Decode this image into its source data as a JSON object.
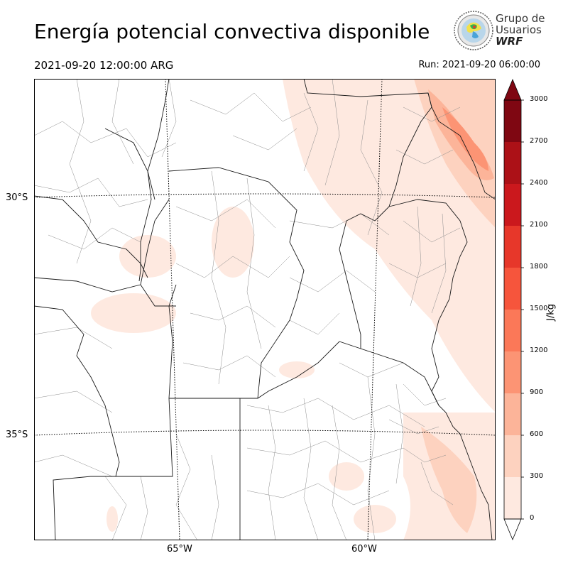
{
  "header": {
    "title": "Energía potencial convectiva disponible",
    "valid_time": "2021-09-20 12:00:00 ARG",
    "run_time": "Run: 2021-09-20 06:00:00"
  },
  "logo": {
    "line1": "Grupo de",
    "line2": "Usuarios",
    "line3": "WRF"
  },
  "map": {
    "lat_labels": [
      "30°S",
      "35°S"
    ],
    "lon_labels": [
      "65°W",
      "60°W"
    ]
  },
  "colorbar": {
    "label": "J/kg",
    "ticks": [
      "0",
      "300",
      "600",
      "900",
      "1200",
      "1500",
      "1800",
      "2100",
      "2400",
      "2700",
      "3000"
    ],
    "colors": [
      "#fee9e0",
      "#fdd2bf",
      "#fcb499",
      "#fc9474",
      "#fb7858",
      "#f6553c",
      "#e7372a",
      "#cb181d",
      "#ac1117",
      "#7f0712"
    ],
    "extend": "max"
  }
}
